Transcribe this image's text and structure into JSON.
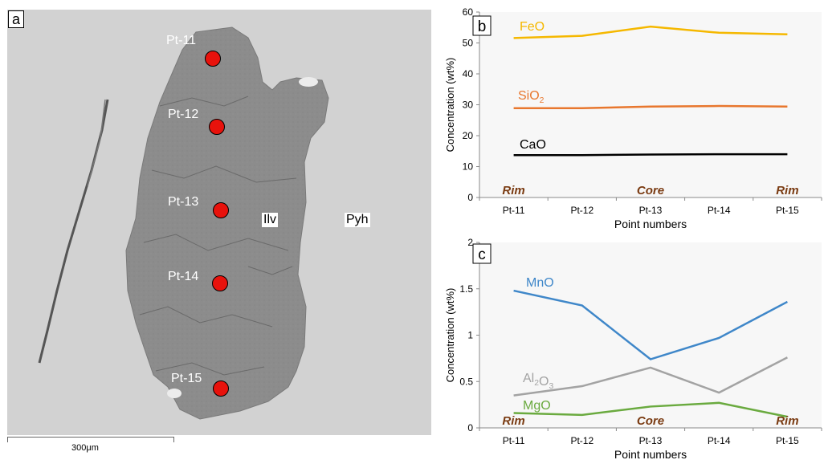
{
  "panels": {
    "a": "a",
    "b": "b",
    "c": "c"
  },
  "photo": {
    "points": [
      "Pt-11",
      "Pt-12",
      "Pt-13",
      "Pt-14",
      "Pt-15"
    ],
    "minerals": [
      "Ilv",
      "Pyh"
    ],
    "scale_bar": "300μm",
    "marker_color": "#e8120c"
  },
  "chart_data": [
    {
      "type": "line",
      "panel": "b",
      "categories": [
        "Pt-11",
        "Pt-12",
        "Pt-13",
        "Pt-14",
        "Pt-15"
      ],
      "xlabel": "Point numbers",
      "ylabel": "Concentration (wt%)",
      "ylim": [
        0,
        60
      ],
      "yticks": [
        0,
        10,
        20,
        30,
        40,
        50,
        60
      ],
      "grid": false,
      "series": [
        {
          "name": "FeO",
          "color": "#f5b800",
          "values": [
            51.6,
            52.3,
            55.3,
            53.3,
            52.8
          ]
        },
        {
          "name": "SiO2",
          "color": "#e8772e",
          "values": [
            28.9,
            28.9,
            29.4,
            29.6,
            29.4
          ]
        },
        {
          "name": "CaO",
          "color": "#000000",
          "values": [
            13.7,
            13.7,
            13.9,
            14.0,
            14.0
          ]
        }
      ],
      "annotations": [
        "Rim",
        "Core",
        "Rim"
      ]
    },
    {
      "type": "line",
      "panel": "c",
      "categories": [
        "Pt-11",
        "Pt-12",
        "Pt-13",
        "Pt-14",
        "Pt-15"
      ],
      "xlabel": "Point numbers",
      "ylabel": "Concentration (wt%)",
      "ylim": [
        0,
        2
      ],
      "yticks": [
        "0",
        "0.5",
        "1",
        "1.5",
        "2"
      ],
      "grid": false,
      "series": [
        {
          "name": "MnO",
          "color": "#3f87c9",
          "values": [
            1.48,
            1.32,
            0.74,
            0.97,
            1.36
          ]
        },
        {
          "name": "Al2O3",
          "color": "#a3a3a3",
          "values": [
            0.35,
            0.45,
            0.65,
            0.38,
            0.76
          ]
        },
        {
          "name": "MgO",
          "color": "#6aaa3f",
          "values": [
            0.16,
            0.14,
            0.23,
            0.27,
            0.12
          ]
        }
      ],
      "annotations": [
        "Rim",
        "Core",
        "Rim"
      ]
    }
  ],
  "annotation_color": "#7a3b12"
}
